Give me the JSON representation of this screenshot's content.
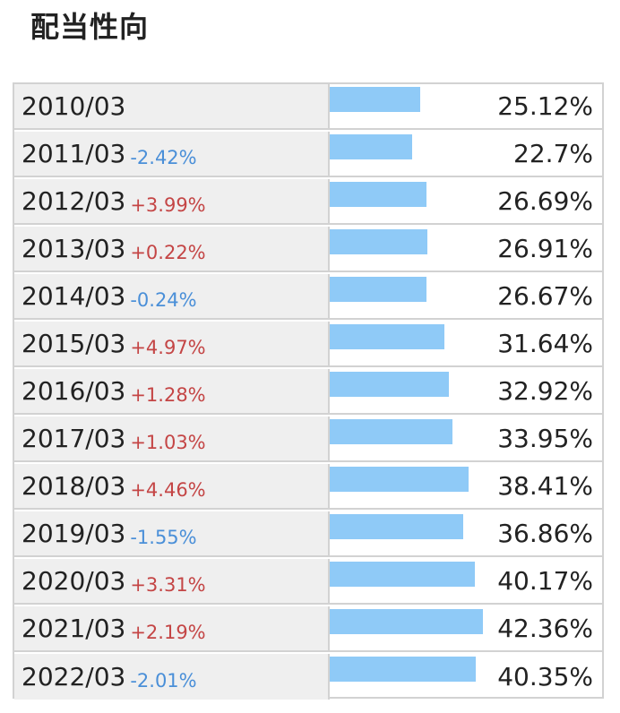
{
  "page": {
    "title": "配当性向"
  },
  "colors": {
    "bar": "#8fcaf7",
    "increase": "#c44545",
    "decrease": "#4a8fd8",
    "label_bg": "#efefef",
    "border": "#d2d2d2"
  },
  "bar_scale_max": 70,
  "rows": [
    {
      "period": "2010/03",
      "change": "",
      "direction": "none",
      "value": 25.12,
      "value_text": "25.12%"
    },
    {
      "period": "2011/03",
      "change": "-2.42%",
      "direction": "down",
      "value": 22.7,
      "value_text": "22.7%"
    },
    {
      "period": "2012/03",
      "change": "+3.99%",
      "direction": "up",
      "value": 26.69,
      "value_text": "26.69%"
    },
    {
      "period": "2013/03",
      "change": "+0.22%",
      "direction": "up",
      "value": 26.91,
      "value_text": "26.91%"
    },
    {
      "period": "2014/03",
      "change": "-0.24%",
      "direction": "down",
      "value": 26.67,
      "value_text": "26.67%"
    },
    {
      "period": "2015/03",
      "change": "+4.97%",
      "direction": "up",
      "value": 31.64,
      "value_text": "31.64%"
    },
    {
      "period": "2016/03",
      "change": "+1.28%",
      "direction": "up",
      "value": 32.92,
      "value_text": "32.92%"
    },
    {
      "period": "2017/03",
      "change": "+1.03%",
      "direction": "up",
      "value": 33.95,
      "value_text": "33.95%"
    },
    {
      "period": "2018/03",
      "change": "+4.46%",
      "direction": "up",
      "value": 38.41,
      "value_text": "38.41%"
    },
    {
      "period": "2019/03",
      "change": "-1.55%",
      "direction": "down",
      "value": 36.86,
      "value_text": "36.86%"
    },
    {
      "period": "2020/03",
      "change": "+3.31%",
      "direction": "up",
      "value": 40.17,
      "value_text": "40.17%"
    },
    {
      "period": "2021/03",
      "change": "+2.19%",
      "direction": "up",
      "value": 42.36,
      "value_text": "42.36%"
    },
    {
      "period": "2022/03",
      "change": "-2.01%",
      "direction": "down",
      "value": 40.35,
      "value_text": "40.35%"
    }
  ]
}
